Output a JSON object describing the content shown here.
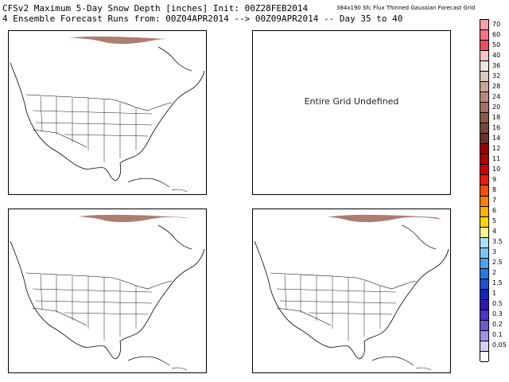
{
  "header": {
    "line1": "CFSv2 Maximum 5-Day Snow Depth [inches] Init: 00Z28FEB2014",
    "line2": "4 Ensemble Forecast Runs from: 00Z04APR2014 --> 00Z09APR2014 -- Day 35 to 40",
    "grid_info": "384x190 Sfc Flux Thinned Gaussian Forecast Grid"
  },
  "panels": {
    "top_right_message": "Entire Grid Undefined"
  },
  "colorbar": {
    "entries": [
      {
        "label": "70",
        "color": "#f6a0a7"
      },
      {
        "label": "60",
        "color": "#f27380"
      },
      {
        "label": "50",
        "color": "#ee4d5f"
      },
      {
        "label": "40",
        "color": "#f7c4c6"
      },
      {
        "label": "36",
        "color": "#efe3df"
      },
      {
        "label": "32",
        "color": "#ddc6bd"
      },
      {
        "label": "28",
        "color": "#caa699"
      },
      {
        "label": "24",
        "color": "#b8897b"
      },
      {
        "label": "20",
        "color": "#a36f62"
      },
      {
        "label": "18",
        "color": "#8f594c"
      },
      {
        "label": "16",
        "color": "#7b4639"
      },
      {
        "label": "14",
        "color": "#66362c"
      },
      {
        "label": "12",
        "color": "#9b0000"
      },
      {
        "label": "11",
        "color": "#b50000"
      },
      {
        "label": "10",
        "color": "#d20000"
      },
      {
        "label": "9",
        "color": "#ee1c00"
      },
      {
        "label": "8",
        "color": "#f75000"
      },
      {
        "label": "7",
        "color": "#fc8200"
      },
      {
        "label": "6",
        "color": "#fdb100"
      },
      {
        "label": "5",
        "color": "#ffd700"
      },
      {
        "label": "4",
        "color": "#fff38a"
      },
      {
        "label": "3.5",
        "color": "#a9e0f8"
      },
      {
        "label": "3",
        "color": "#7cc6f5"
      },
      {
        "label": "2.5",
        "color": "#4aa1f0"
      },
      {
        "label": "2",
        "color": "#2a78e2"
      },
      {
        "label": "1.5",
        "color": "#1d4fd0"
      },
      {
        "label": "1",
        "color": "#1028b5"
      },
      {
        "label": "0.5",
        "color": "#2e1ab0"
      },
      {
        "label": "0.3",
        "color": "#4a35c6"
      },
      {
        "label": "0.2",
        "color": "#6b5ad6"
      },
      {
        "label": "0.1",
        "color": "#9e94e8"
      },
      {
        "label": "0.05",
        "color": "#d2cef5"
      },
      {
        "label": "",
        "color": "#ffffff"
      }
    ]
  }
}
